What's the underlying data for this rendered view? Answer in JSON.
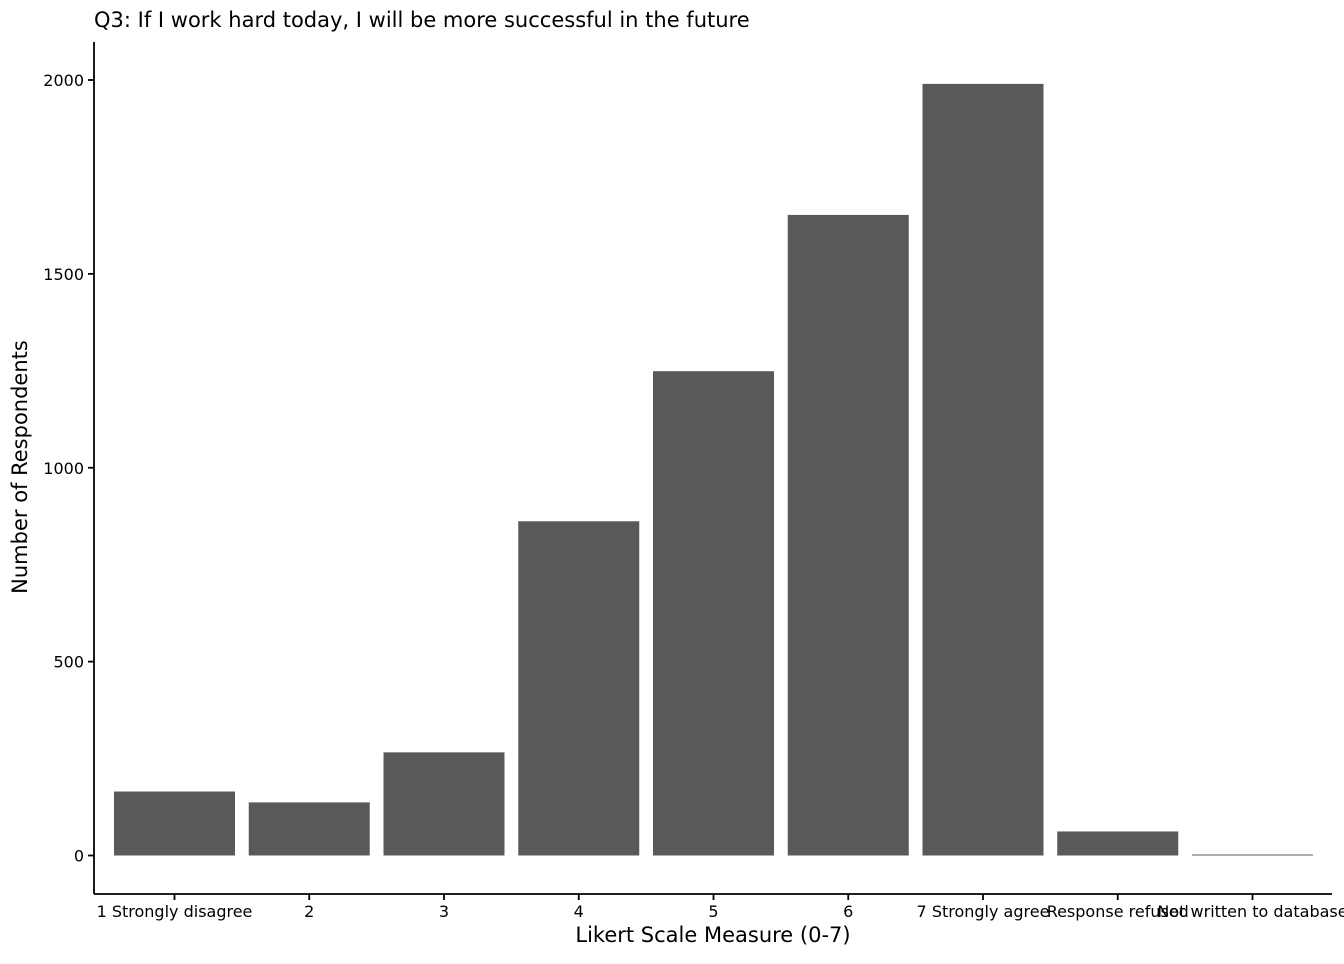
{
  "chart_data": {
    "type": "bar",
    "title": "Q3: If I work hard today, I will be more successful in the future",
    "xlabel": "Likert Scale Measure (0-7)",
    "ylabel": "Number of Respondents",
    "categories": [
      "1 Strongly disagree",
      "2",
      "3",
      "4",
      "5",
      "6",
      "7 Strongly agree",
      "Response refused",
      "Not written to database"
    ],
    "values": [
      165,
      137,
      266,
      862,
      1249,
      1652,
      1990,
      62,
      1
    ],
    "ylim": [
      -100,
      2100
    ],
    "yticks": [
      0,
      500,
      1000,
      1500,
      2000
    ],
    "grid": false,
    "legend": "none",
    "bar_color": "#595959"
  }
}
